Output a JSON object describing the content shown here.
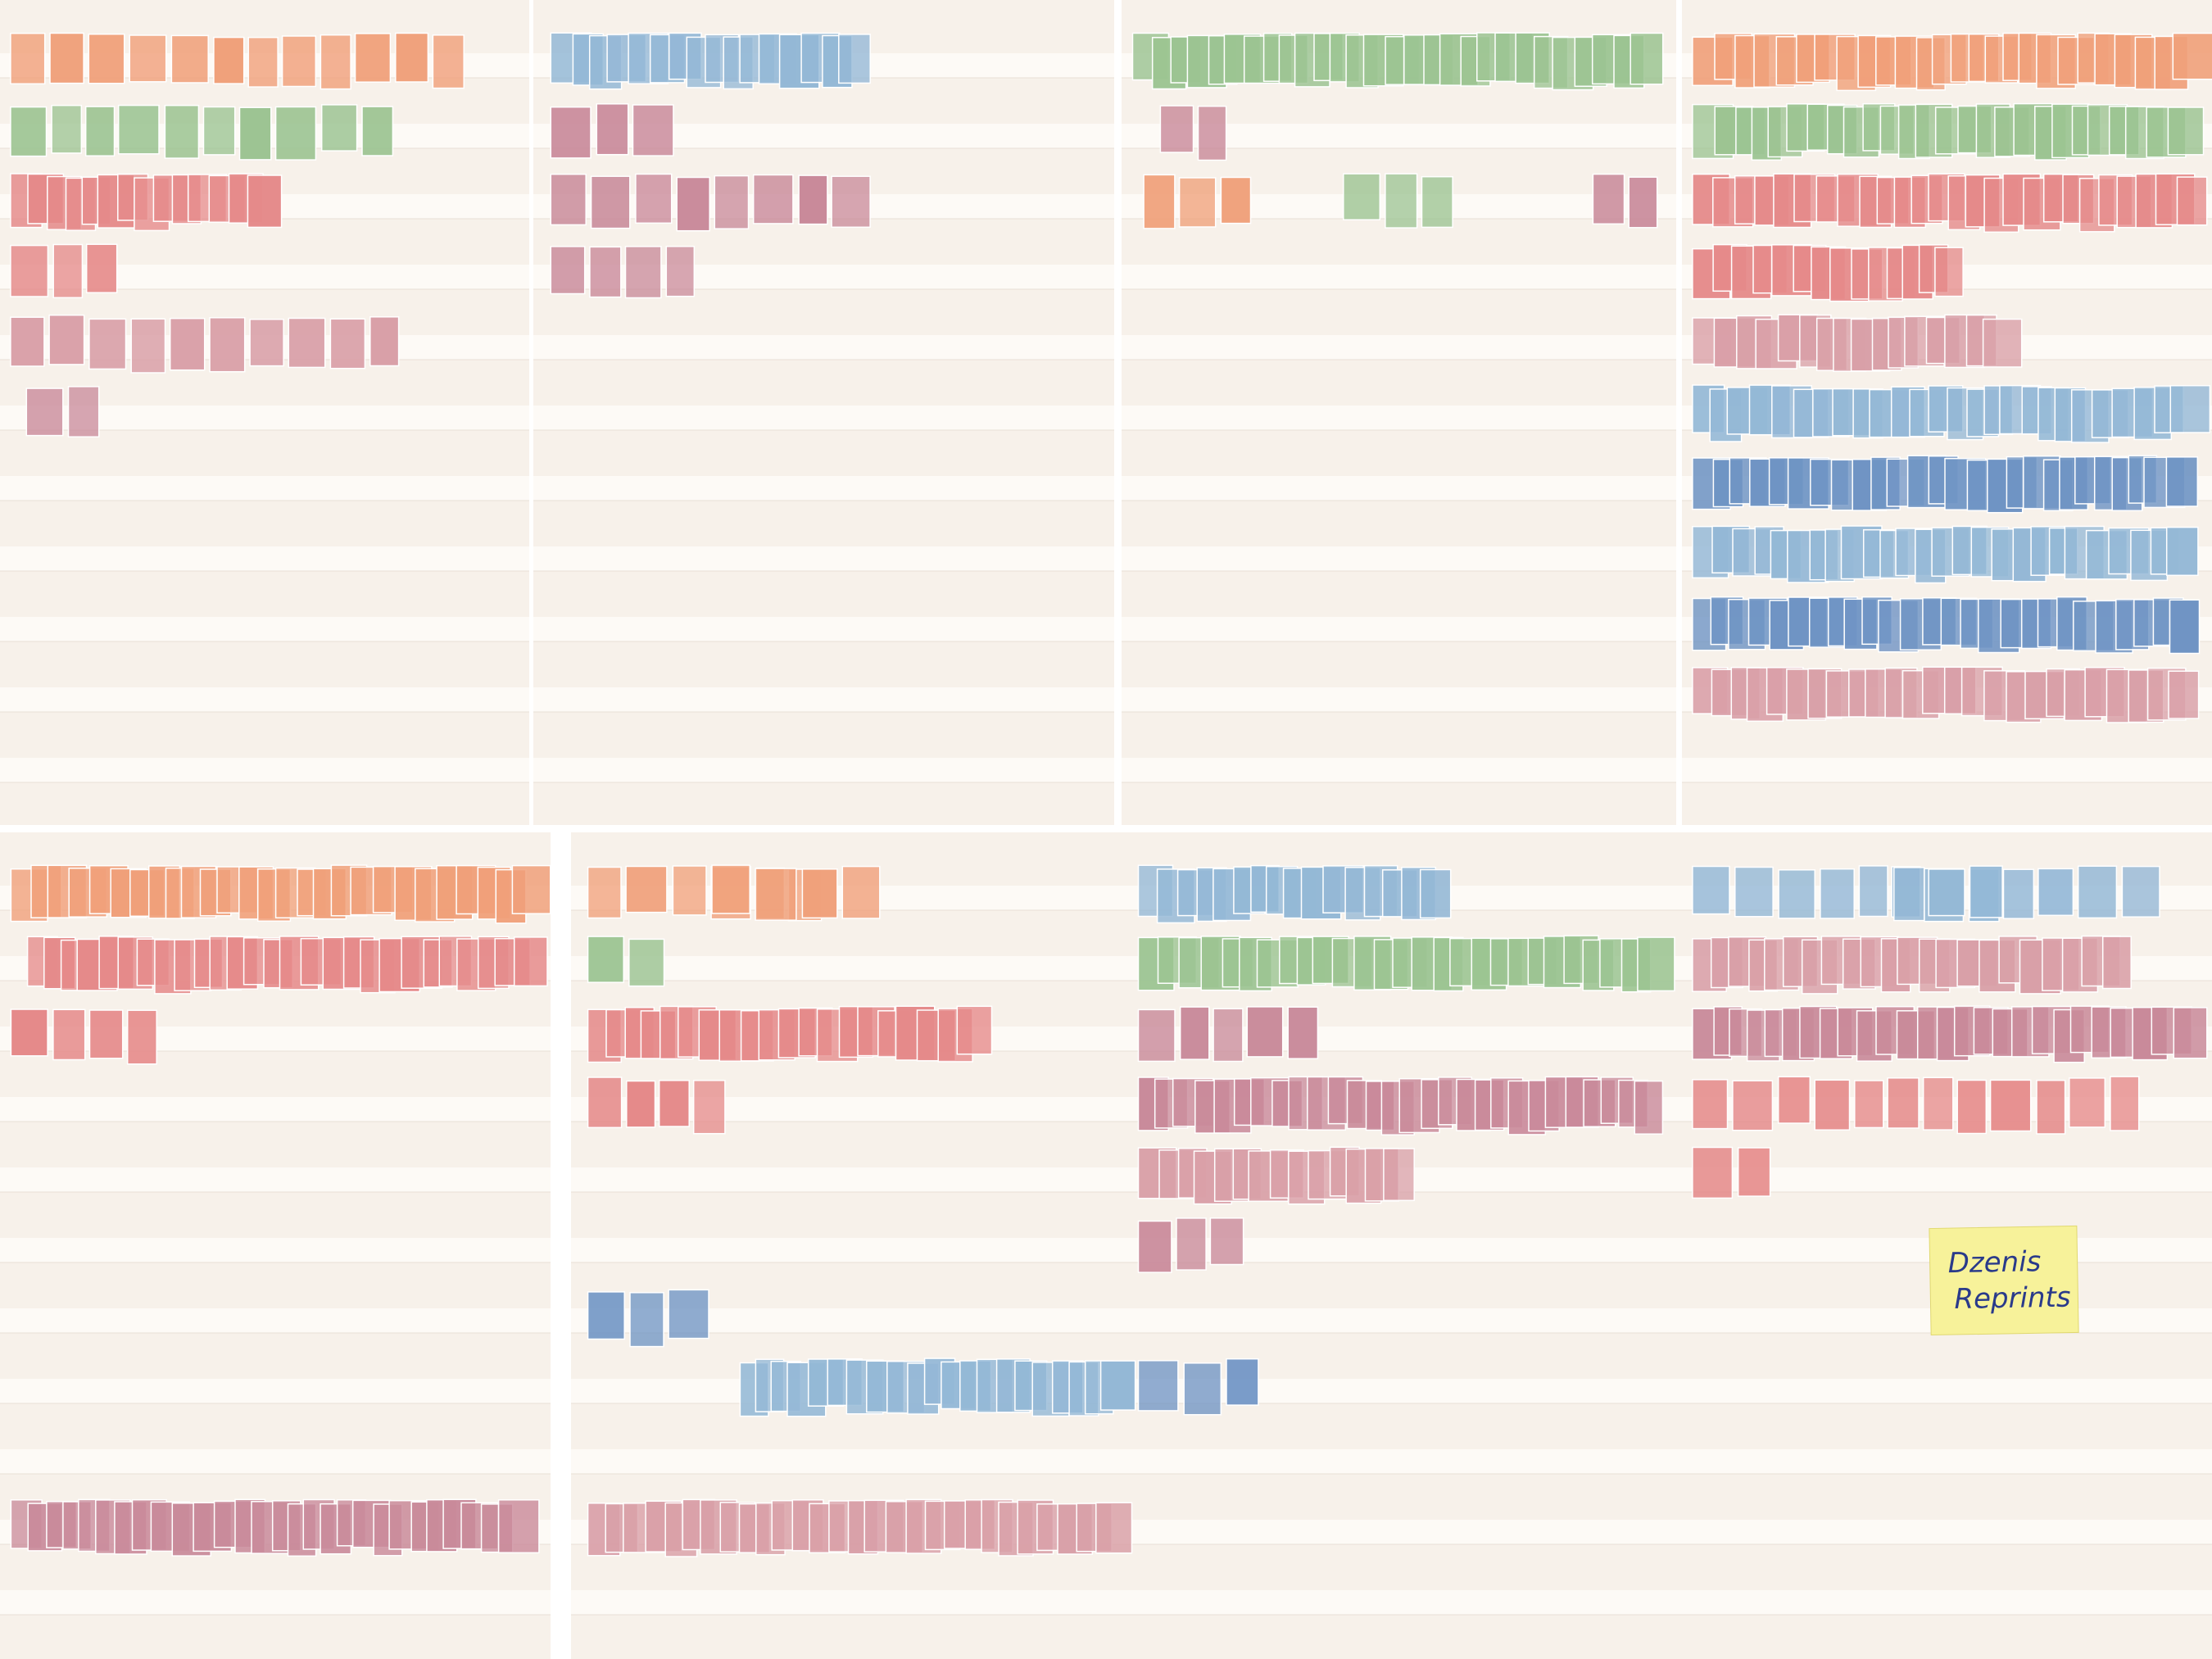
{
  "note": {
    "lines": [
      "Dzenis",
      "Reprints"
    ]
  }
}
